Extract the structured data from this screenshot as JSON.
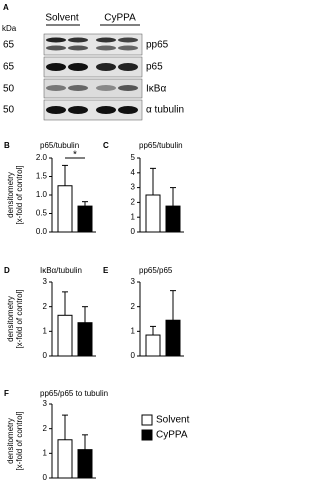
{
  "blot": {
    "panel": "A",
    "kda_label": "kDa",
    "groups": [
      "Solvent",
      "CyPPA"
    ],
    "kda": [
      65,
      65,
      50,
      50
    ],
    "proteins": [
      "pp65",
      "p65",
      "IκBα",
      "α tubulin"
    ]
  },
  "legend": [
    {
      "name": "Solvent",
      "color": "#ffffff"
    },
    {
      "name": "CyPPA",
      "color": "#000000"
    }
  ],
  "chart_data": [
    {
      "type": "bar",
      "panel": "B",
      "title": "p65/tubulin",
      "ylabel": [
        "densitometry",
        "[x-fold of control]"
      ],
      "values": [
        1.25,
        0.7
      ],
      "errors": [
        0.55,
        0.12
      ],
      "colors": [
        "#ffffff",
        "#000000"
      ],
      "ylim": [
        0,
        2
      ],
      "yticks": [
        {
          "value": 0,
          "label": "0.0"
        },
        {
          "value": 0.5,
          "label": "0.5"
        },
        {
          "value": 1,
          "label": "1.0"
        },
        {
          "value": 1.5,
          "label": "1.5"
        },
        {
          "value": 2,
          "label": "2.0"
        }
      ],
      "annotation": "*"
    },
    {
      "type": "bar",
      "panel": "C",
      "title": "pp65/tubulin",
      "values": [
        2.5,
        1.75
      ],
      "errors": [
        1.8,
        1.25
      ],
      "colors": [
        "#ffffff",
        "#000000"
      ],
      "ylim": [
        0,
        5
      ],
      "yticks": [
        0,
        1,
        2,
        3,
        4,
        5
      ]
    },
    {
      "type": "bar",
      "panel": "D",
      "title": "IκBα/tubulin",
      "ylabel": [
        "densitometry",
        "[x-fold of control]"
      ],
      "values": [
        1.65,
        1.35
      ],
      "errors": [
        0.95,
        0.65
      ],
      "colors": [
        "#ffffff",
        "#000000"
      ],
      "ylim": [
        0,
        3
      ],
      "yticks": [
        0,
        1,
        2,
        3
      ]
    },
    {
      "type": "bar",
      "panel": "E",
      "title": "pp65/p65",
      "values": [
        0.85,
        1.45
      ],
      "errors": [
        0.35,
        1.2
      ],
      "colors": [
        "#ffffff",
        "#000000"
      ],
      "ylim": [
        0,
        3
      ],
      "yticks": [
        0,
        1,
        2,
        3
      ]
    },
    {
      "type": "bar",
      "panel": "F",
      "title": "pp65/p65 to tubulin",
      "ylabel": [
        "densitometry",
        "[x-fold of control]"
      ],
      "values": [
        1.55,
        1.15
      ],
      "errors": [
        1.0,
        0.6
      ],
      "colors": [
        "#ffffff",
        "#000000"
      ],
      "ylim": [
        0,
        3
      ],
      "yticks": [
        0,
        1,
        2,
        3
      ]
    }
  ]
}
